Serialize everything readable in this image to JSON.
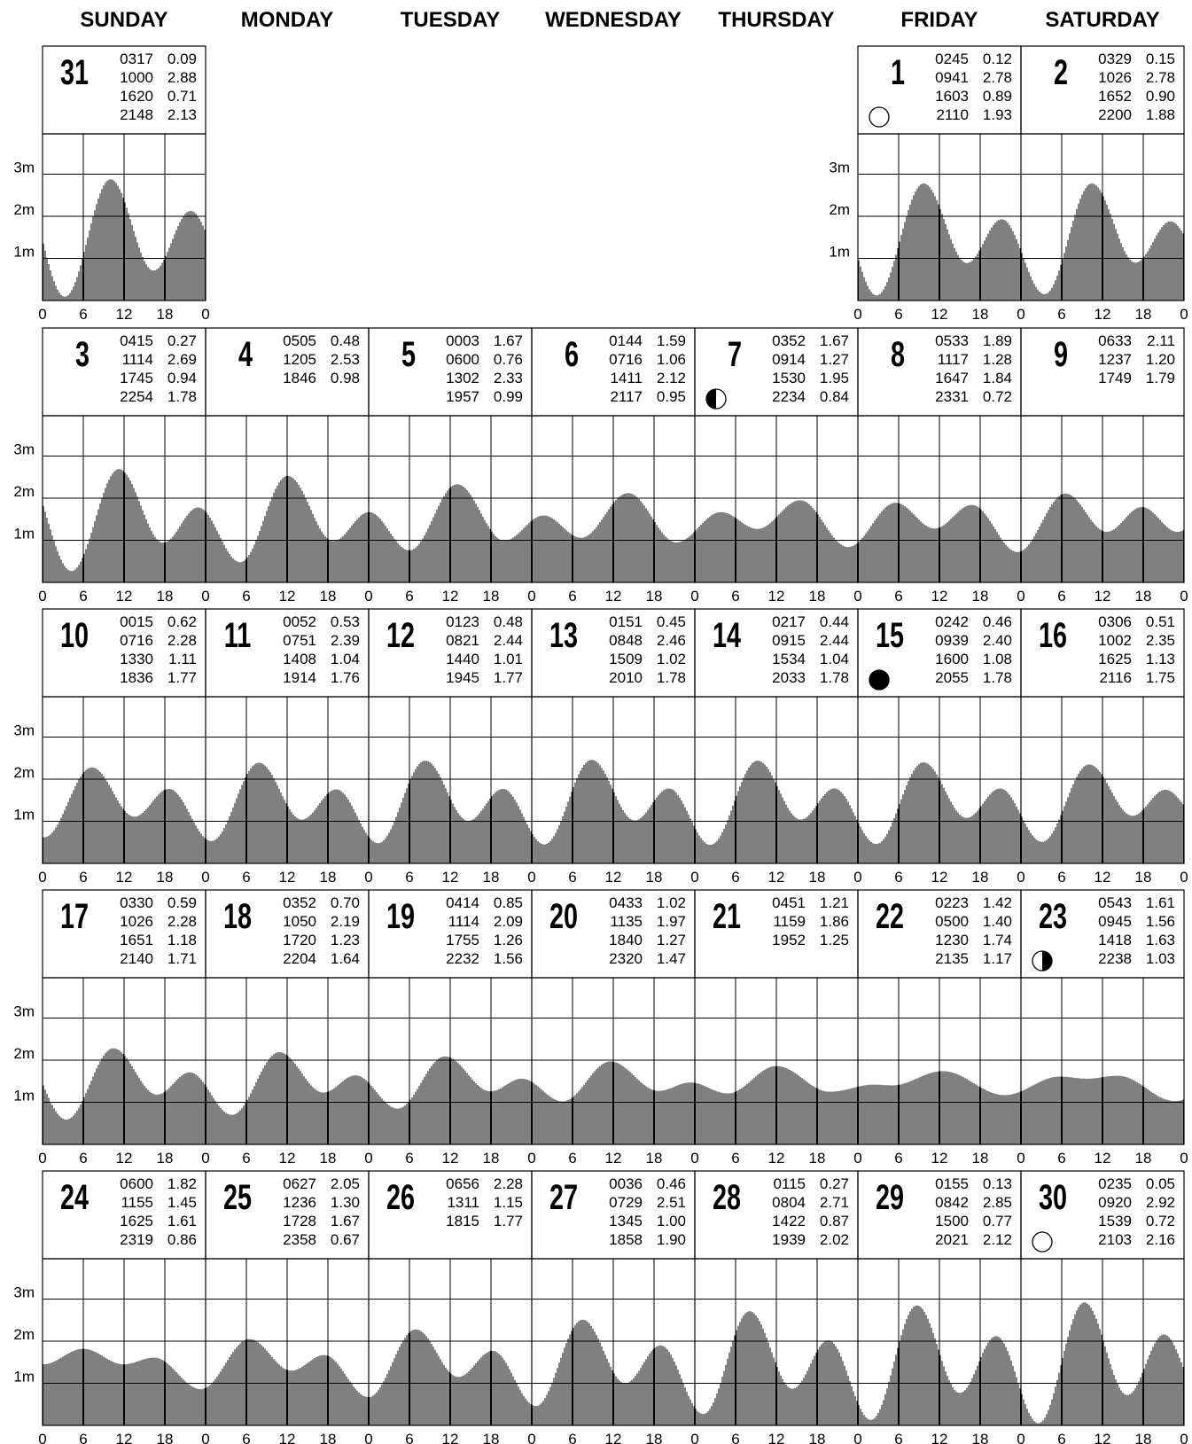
{
  "chart_data": {
    "type": "area",
    "title": "",
    "weekdays": [
      "SUNDAY",
      "MONDAY",
      "TUESDAY",
      "WEDNESDAY",
      "THURSDAY",
      "FRIDAY",
      "SATURDAY"
    ],
    "ylabels": [
      "3m",
      "2m",
      "1m"
    ],
    "ylim": [
      0,
      4
    ],
    "xticks": [
      "0",
      "6",
      "12",
      "18"
    ],
    "xlim_hours": [
      0,
      24
    ],
    "xlabel": "",
    "ylabel": "",
    "grid": true,
    "weeks": [
      {
        "days": [
          {
            "col": 0,
            "date": "31",
            "moon": "",
            "tides": [
              [
                "0317",
                "0.09"
              ],
              [
                "1000",
                "2.88"
              ],
              [
                "1620",
                "0.71"
              ],
              [
                "2148",
                "2.13"
              ]
            ]
          },
          {
            "col": 5,
            "date": "1",
            "moon": "full",
            "tides": [
              [
                "0245",
                "0.12"
              ],
              [
                "0941",
                "2.78"
              ],
              [
                "1603",
                "0.89"
              ],
              [
                "2110",
                "1.93"
              ]
            ]
          },
          {
            "col": 6,
            "date": "2",
            "moon": "",
            "tides": [
              [
                "0329",
                "0.15"
              ],
              [
                "1026",
                "2.78"
              ],
              [
                "1652",
                "0.90"
              ],
              [
                "2200",
                "1.88"
              ]
            ]
          }
        ]
      },
      {
        "days": [
          {
            "col": 0,
            "date": "3",
            "moon": "",
            "tides": [
              [
                "0415",
                "0.27"
              ],
              [
                "1114",
                "2.69"
              ],
              [
                "1745",
                "0.94"
              ],
              [
                "2254",
                "1.78"
              ]
            ]
          },
          {
            "col": 1,
            "date": "4",
            "moon": "",
            "tides": [
              [
                "0505",
                "0.48"
              ],
              [
                "1205",
                "2.53"
              ],
              [
                "1846",
                "0.98"
              ]
            ]
          },
          {
            "col": 2,
            "date": "5",
            "moon": "",
            "tides": [
              [
                "0003",
                "1.67"
              ],
              [
                "0600",
                "0.76"
              ],
              [
                "1302",
                "2.33"
              ],
              [
                "1957",
                "0.99"
              ]
            ]
          },
          {
            "col": 3,
            "date": "6",
            "moon": "",
            "tides": [
              [
                "0144",
                "1.59"
              ],
              [
                "0716",
                "1.06"
              ],
              [
                "1411",
                "2.12"
              ],
              [
                "2117",
                "0.95"
              ]
            ]
          },
          {
            "col": 4,
            "date": "7",
            "moon": "first-quarter",
            "tides": [
              [
                "0352",
                "1.67"
              ],
              [
                "0914",
                "1.27"
              ],
              [
                "1530",
                "1.95"
              ],
              [
                "2234",
                "0.84"
              ]
            ]
          },
          {
            "col": 5,
            "date": "8",
            "moon": "",
            "tides": [
              [
                "0533",
                "1.89"
              ],
              [
                "1117",
                "1.28"
              ],
              [
                "1647",
                "1.84"
              ],
              [
                "2331",
                "0.72"
              ]
            ]
          },
          {
            "col": 6,
            "date": "9",
            "moon": "",
            "tides": [
              [
                "0633",
                "2.11"
              ],
              [
                "1237",
                "1.20"
              ],
              [
                "1749",
                "1.79"
              ]
            ]
          }
        ]
      },
      {
        "days": [
          {
            "col": 0,
            "date": "10",
            "moon": "",
            "tides": [
              [
                "0015",
                "0.62"
              ],
              [
                "0716",
                "2.28"
              ],
              [
                "1330",
                "1.11"
              ],
              [
                "1836",
                "1.77"
              ]
            ]
          },
          {
            "col": 1,
            "date": "11",
            "moon": "",
            "tides": [
              [
                "0052",
                "0.53"
              ],
              [
                "0751",
                "2.39"
              ],
              [
                "1408",
                "1.04"
              ],
              [
                "1914",
                "1.76"
              ]
            ]
          },
          {
            "col": 2,
            "date": "12",
            "moon": "",
            "tides": [
              [
                "0123",
                "0.48"
              ],
              [
                "0821",
                "2.44"
              ],
              [
                "1440",
                "1.01"
              ],
              [
                "1945",
                "1.77"
              ]
            ]
          },
          {
            "col": 3,
            "date": "13",
            "moon": "",
            "tides": [
              [
                "0151",
                "0.45"
              ],
              [
                "0848",
                "2.46"
              ],
              [
                "1509",
                "1.02"
              ],
              [
                "2010",
                "1.78"
              ]
            ]
          },
          {
            "col": 4,
            "date": "14",
            "moon": "",
            "tides": [
              [
                "0217",
                "0.44"
              ],
              [
                "0915",
                "2.44"
              ],
              [
                "1534",
                "1.04"
              ],
              [
                "2033",
                "1.78"
              ]
            ]
          },
          {
            "col": 5,
            "date": "15",
            "moon": "new",
            "tides": [
              [
                "0242",
                "0.46"
              ],
              [
                "0939",
                "2.40"
              ],
              [
                "1600",
                "1.08"
              ],
              [
                "2055",
                "1.78"
              ]
            ]
          },
          {
            "col": 6,
            "date": "16",
            "moon": "",
            "tides": [
              [
                "0306",
                "0.51"
              ],
              [
                "1002",
                "2.35"
              ],
              [
                "1625",
                "1.13"
              ],
              [
                "2116",
                "1.75"
              ]
            ]
          }
        ]
      },
      {
        "days": [
          {
            "col": 0,
            "date": "17",
            "moon": "",
            "tides": [
              [
                "0330",
                "0.59"
              ],
              [
                "1026",
                "2.28"
              ],
              [
                "1651",
                "1.18"
              ],
              [
                "2140",
                "1.71"
              ]
            ]
          },
          {
            "col": 1,
            "date": "18",
            "moon": "",
            "tides": [
              [
                "0352",
                "0.70"
              ],
              [
                "1050",
                "2.19"
              ],
              [
                "1720",
                "1.23"
              ],
              [
                "2204",
                "1.64"
              ]
            ]
          },
          {
            "col": 2,
            "date": "19",
            "moon": "",
            "tides": [
              [
                "0414",
                "0.85"
              ],
              [
                "1114",
                "2.09"
              ],
              [
                "1755",
                "1.26"
              ],
              [
                "2232",
                "1.56"
              ]
            ]
          },
          {
            "col": 3,
            "date": "20",
            "moon": "",
            "tides": [
              [
                "0433",
                "1.02"
              ],
              [
                "1135",
                "1.97"
              ],
              [
                "1840",
                "1.27"
              ],
              [
                "2320",
                "1.47"
              ]
            ]
          },
          {
            "col": 4,
            "date": "21",
            "moon": "",
            "tides": [
              [
                "0451",
                "1.21"
              ],
              [
                "1159",
                "1.86"
              ],
              [
                "1952",
                "1.25"
              ]
            ]
          },
          {
            "col": 5,
            "date": "22",
            "moon": "",
            "tides": [
              [
                "0223",
                "1.42"
              ],
              [
                "0500",
                "1.40"
              ],
              [
                "1230",
                "1.74"
              ],
              [
                "2135",
                "1.17"
              ]
            ]
          },
          {
            "col": 6,
            "date": "23",
            "moon": "last-quarter",
            "tides": [
              [
                "0543",
                "1.61"
              ],
              [
                "0945",
                "1.56"
              ],
              [
                "1418",
                "1.63"
              ],
              [
                "2238",
                "1.03"
              ]
            ]
          }
        ]
      },
      {
        "days": [
          {
            "col": 0,
            "date": "24",
            "moon": "",
            "tides": [
              [
                "0600",
                "1.82"
              ],
              [
                "1155",
                "1.45"
              ],
              [
                "1625",
                "1.61"
              ],
              [
                "2319",
                "0.86"
              ]
            ]
          },
          {
            "col": 1,
            "date": "25",
            "moon": "",
            "tides": [
              [
                "0627",
                "2.05"
              ],
              [
                "1236",
                "1.30"
              ],
              [
                "1728",
                "1.67"
              ],
              [
                "2358",
                "0.67"
              ]
            ]
          },
          {
            "col": 2,
            "date": "26",
            "moon": "",
            "tides": [
              [
                "0656",
                "2.28"
              ],
              [
                "1311",
                "1.15"
              ],
              [
                "1815",
                "1.77"
              ]
            ]
          },
          {
            "col": 3,
            "date": "27",
            "moon": "",
            "tides": [
              [
                "0036",
                "0.46"
              ],
              [
                "0729",
                "2.51"
              ],
              [
                "1345",
                "1.00"
              ],
              [
                "1858",
                "1.90"
              ]
            ]
          },
          {
            "col": 4,
            "date": "28",
            "moon": "",
            "tides": [
              [
                "0115",
                "0.27"
              ],
              [
                "0804",
                "2.71"
              ],
              [
                "1422",
                "0.87"
              ],
              [
                "1939",
                "2.02"
              ]
            ]
          },
          {
            "col": 5,
            "date": "29",
            "moon": "",
            "tides": [
              [
                "0155",
                "0.13"
              ],
              [
                "0842",
                "2.85"
              ],
              [
                "1500",
                "0.77"
              ],
              [
                "2021",
                "2.12"
              ]
            ]
          },
          {
            "col": 6,
            "date": "30",
            "moon": "full",
            "tides": [
              [
                "0235",
                "0.05"
              ],
              [
                "0920",
                "2.92"
              ],
              [
                "1539",
                "0.72"
              ],
              [
                "2103",
                "2.16"
              ]
            ]
          }
        ]
      }
    ]
  }
}
